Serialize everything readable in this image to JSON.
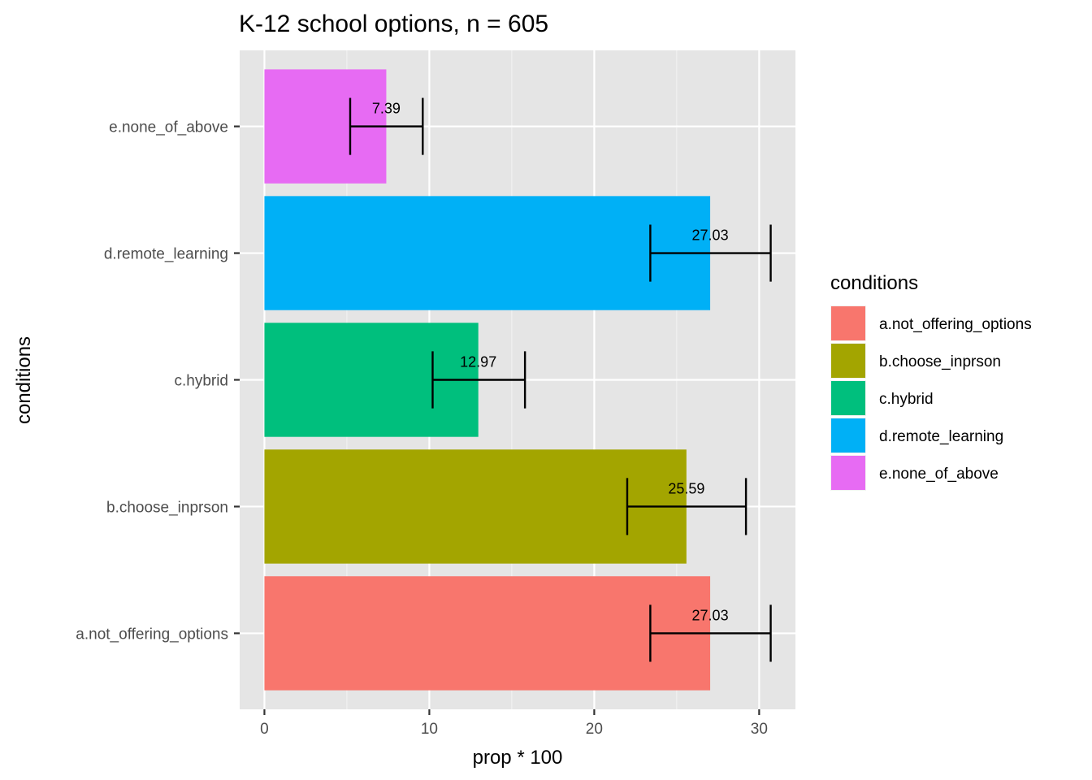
{
  "chart_data": {
    "type": "bar",
    "orientation": "horizontal",
    "title": "K-12 school options, n = 605",
    "xlabel": "prop * 100",
    "ylabel": "conditions",
    "xlim": [
      -1.5,
      32.2
    ],
    "xticks": [
      0,
      10,
      20,
      30
    ],
    "grid": true,
    "categories": [
      "a.not_offering_options",
      "b.choose_inprson",
      "c.hybrid",
      "d.remote_learning",
      "e.none_of_above"
    ],
    "values": [
      27.03,
      25.59,
      12.97,
      27.03,
      7.39
    ],
    "value_labels": [
      "27.03",
      "25.59",
      "12.97",
      "27.03",
      "7.39"
    ],
    "error_low": [
      23.4,
      22.0,
      10.2,
      23.4,
      5.2
    ],
    "error_high": [
      30.7,
      29.2,
      15.8,
      30.7,
      9.6
    ],
    "colors": [
      "#F8766D",
      "#A3A500",
      "#00BF7D",
      "#00B0F6",
      "#E76BF3"
    ],
    "legend": {
      "title": "conditions",
      "position": "right",
      "entries": [
        "a.not_offering_options",
        "b.choose_inprson",
        "c.hybrid",
        "d.remote_learning",
        "e.none_of_above"
      ]
    },
    "panel_background": "#e5e5e5"
  }
}
